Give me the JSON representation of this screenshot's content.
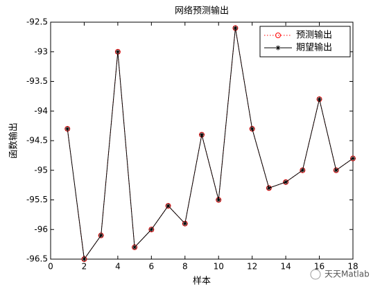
{
  "chart_data": {
    "type": "line",
    "title": "网络预测输出",
    "xlabel": "样本",
    "ylabel": "函数输出",
    "x": [
      1,
      2,
      3,
      4,
      5,
      6,
      7,
      8,
      9,
      10,
      11,
      12,
      13,
      14,
      15,
      16,
      17,
      18
    ],
    "series": [
      {
        "name": "预测输出",
        "color": "#ff0000",
        "marker": "circle",
        "linestyle": "dotted",
        "values": [
          -94.3,
          -96.5,
          -96.1,
          -93.0,
          -96.3,
          -96.0,
          -95.6,
          -95.9,
          -94.4,
          -95.5,
          -92.6,
          -94.3,
          -95.3,
          -95.2,
          -95.0,
          -93.8,
          -95.0,
          -94.8
        ]
      },
      {
        "name": "期望输出",
        "color": "#000000",
        "marker": "asterisk",
        "linestyle": "solid",
        "values": [
          -94.3,
          -96.5,
          -96.1,
          -93.0,
          -96.3,
          -96.0,
          -95.6,
          -95.9,
          -94.4,
          -95.5,
          -92.6,
          -94.3,
          -95.3,
          -95.2,
          -95.0,
          -93.8,
          -95.0,
          -94.8
        ]
      }
    ],
    "xlim": [
      0,
      18
    ],
    "xticks": [
      0,
      2,
      4,
      6,
      8,
      10,
      12,
      14,
      16,
      18
    ],
    "ylim": [
      -96.5,
      -92.5
    ],
    "yticks": [
      -96.5,
      -96,
      -95.5,
      -95,
      -94.5,
      -94,
      -93.5,
      -93,
      -92.5
    ],
    "legend": "top-right",
    "grid": false,
    "watermark": "天天Matlab"
  }
}
